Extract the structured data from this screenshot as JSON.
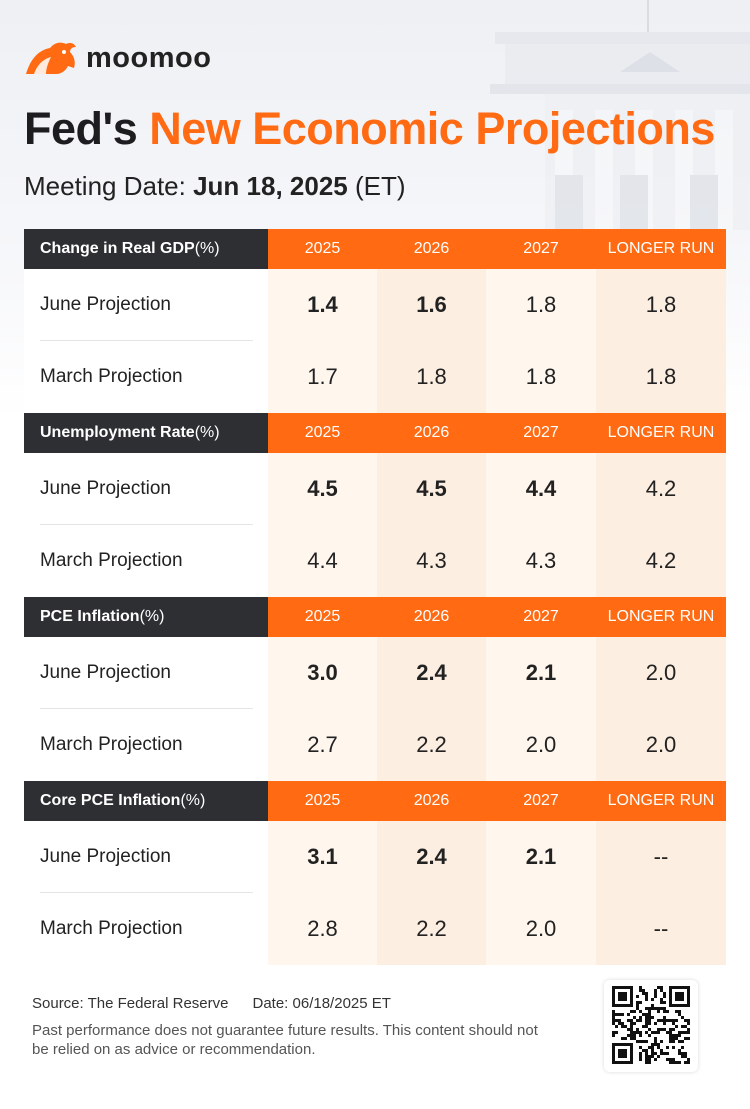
{
  "brand": {
    "name": "moomoo"
  },
  "title": {
    "prefix": "Fed's ",
    "accent": "New Economic Projections"
  },
  "meeting": {
    "label": "Meeting Date: ",
    "date": "Jun 18, 2025",
    "tz": " (ET)"
  },
  "columns": [
    "2025",
    "2026",
    "2027",
    "LONGER RUN"
  ],
  "sections": [
    {
      "name": "Change in Real GDP",
      "unit": "(%)",
      "rows": [
        {
          "label": "June Projection",
          "values": [
            "1.4",
            "1.6",
            "1.8",
            "1.8"
          ]
        },
        {
          "label": "March Projection",
          "values": [
            "1.7",
            "1.8",
            "1.8",
            "1.8"
          ]
        }
      ]
    },
    {
      "name": "Unemployment Rate",
      "unit": "(%)",
      "rows": [
        {
          "label": "June Projection",
          "values": [
            "4.5",
            "4.5",
            "4.4",
            "4.2"
          ]
        },
        {
          "label": "March Projection",
          "values": [
            "4.4",
            "4.3",
            "4.3",
            "4.2"
          ]
        }
      ]
    },
    {
      "name": "PCE Inflation",
      "unit": "(%)",
      "rows": [
        {
          "label": "June Projection",
          "values": [
            "3.0",
            "2.4",
            "2.1",
            "2.0"
          ]
        },
        {
          "label": "March Projection",
          "values": [
            "2.7",
            "2.2",
            "2.0",
            "2.0"
          ]
        }
      ]
    },
    {
      "name": "Core PCE Inflation",
      "unit": "(%)",
      "rows": [
        {
          "label": "June Projection",
          "values": [
            "3.1",
            "2.4",
            "2.1",
            "--"
          ]
        },
        {
          "label": "March Projection",
          "values": [
            "2.8",
            "2.2",
            "2.0",
            "--"
          ]
        }
      ]
    }
  ],
  "footer": {
    "source": "Source: The Federal Reserve",
    "date": "Date: 06/18/2025 ET",
    "disclaimer": "Past performance does not guarantee future results. This content should not be relied on as advice or recommendation."
  },
  "colors": {
    "accent": "#ff6a13",
    "dark": "#2d2f33",
    "tint_light": "#fff6ee",
    "tint_mid": "#fdeee2"
  }
}
